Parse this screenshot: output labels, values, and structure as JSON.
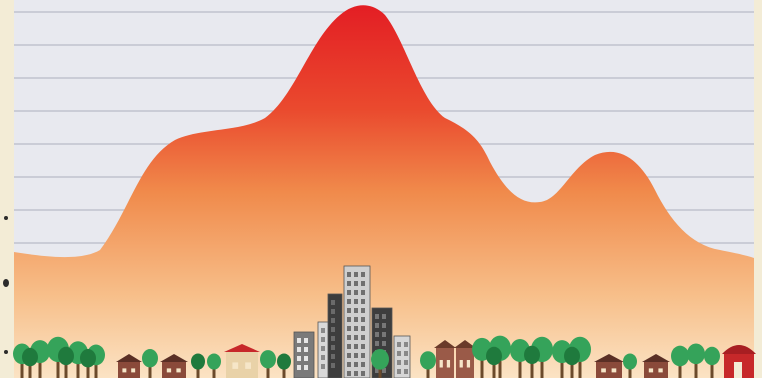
{
  "scene": {
    "kind": "illustration",
    "colors": {
      "frame": "#f3ecd6",
      "panel": "#e8e9ef",
      "grid_line": "#b9bac6",
      "peak_red": "#e31e24",
      "mid_orange": "#f08a4b",
      "base_peach": "#fbe3c4",
      "tree_green": "#35a35a",
      "tree_dark": "#1f7a3d",
      "building_gray": "#8f8f8f",
      "building_dark": "#3d3d3d",
      "roof_red": "#c7282a",
      "house_brown": "#8a4a3a"
    },
    "icons": [
      "trees-icon",
      "houses-icon",
      "skyscrapers-icon",
      "red-roof-house-icon"
    ]
  }
}
